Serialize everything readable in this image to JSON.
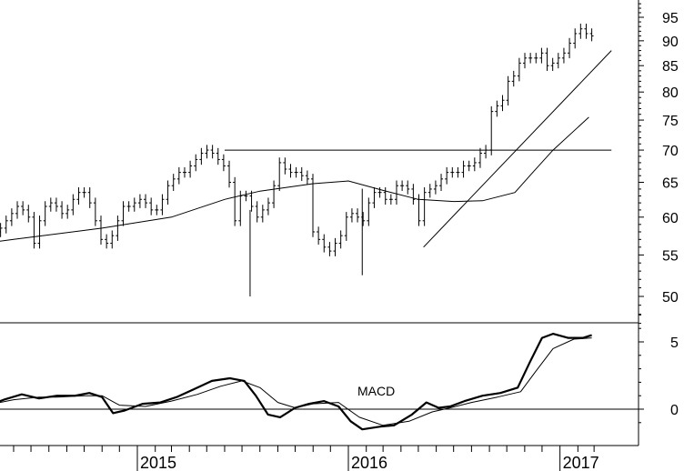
{
  "chart_data": [
    {
      "type": "ohlc",
      "title": "",
      "ylabel": "",
      "y_scale": "log",
      "ylim": [
        46,
        99
      ],
      "y_ticks": [
        50,
        55,
        60,
        65,
        70,
        75,
        80,
        85,
        90,
        95
      ],
      "x_range": [
        "2014-01-01",
        "2017-03-31"
      ],
      "x_labels": [
        "2015",
        "2016",
        "2017"
      ],
      "price_bars": {
        "approx_closes": [
          54.0,
          54.5,
          55.5,
          57.0,
          57.5,
          57.0,
          56.5,
          57.0,
          57.5,
          57.5,
          56.0,
          57.0,
          58.0,
          58.5,
          59.5,
          60.5,
          61.5,
          61.0,
          60.0,
          56.5,
          59.5,
          61.5,
          62.0,
          61.5,
          60.5,
          61.0,
          62.5,
          63.5,
          63.5,
          62.0,
          59.5,
          57.0,
          56.5,
          57.5,
          59.5,
          61.5,
          61.5,
          62.0,
          62.5,
          62.0,
          61.0,
          61.0,
          62.5,
          64.5,
          65.5,
          66.5,
          66.5,
          67.5,
          68.5,
          69.5,
          70.0,
          69.5,
          68.5,
          67.5,
          65.0,
          59.5,
          63.0,
          63.0,
          61.5,
          60.0,
          61.0,
          62.0,
          64.5,
          68.0,
          67.0,
          66.5,
          66.5,
          66.0,
          65.5,
          58.0,
          57.0,
          56.0,
          55.5,
          56.5,
          57.5,
          60.0,
          60.5,
          60.0,
          59.5,
          62.0,
          63.5,
          63.5,
          62.5,
          62.5,
          64.5,
          64.5,
          64.0,
          62.5,
          59.5,
          63.5,
          64.0,
          64.5,
          65.5,
          66.5,
          66.5,
          66.5,
          67.5,
          67.5,
          68.0,
          69.5,
          70.0,
          76.5,
          77.5,
          78.5,
          82.0,
          83.0,
          85.5,
          86.5,
          86.5,
          86.5,
          87.5,
          85.0,
          85.5,
          86.5,
          87.5,
          89.5,
          91.5,
          92.5,
          91.5,
          91.0
        ],
        "spikes_low": [
          {
            "date": "2015-07-15",
            "low": 50.0
          },
          {
            "date": "2016-01-25",
            "low": 52.5
          }
        ]
      },
      "series": [
        {
          "kind": "moving_average",
          "points": [
            [
              "2014-01-01",
              55.5
            ],
            [
              "2014-06-01",
              57.0
            ],
            [
              "2014-11-01",
              58.5
            ],
            [
              "2015-03-01",
              60.0
            ],
            [
              "2015-06-01",
              62.5
            ],
            [
              "2015-08-01",
              63.7
            ],
            [
              "2015-11-01",
              64.8
            ],
            [
              "2016-01-01",
              65.2
            ],
            [
              "2016-03-01",
              63.8
            ],
            [
              "2016-05-01",
              62.5
            ],
            [
              "2016-07-01",
              62.2
            ],
            [
              "2016-08-20",
              62.3
            ],
            [
              "2016-10-15",
              63.5
            ],
            [
              "2016-11-15",
              66.5
            ],
            [
              "2016-12-20",
              70.0
            ],
            [
              "2017-02-20",
              75.5
            ]
          ]
        }
      ],
      "lines": [
        {
          "kind": "horizontal",
          "y": 70.0,
          "from": "2015-06-01",
          "to": "2017-03-31"
        },
        {
          "kind": "trend",
          "from": [
            "2016-05-10",
            56.0
          ],
          "to": [
            "2017-03-31",
            88.0
          ]
        }
      ]
    },
    {
      "type": "line",
      "title": "",
      "annotation": "MACD",
      "ylim": [
        -2,
        7
      ],
      "y_ticks": [
        0,
        5
      ],
      "zero_line": true,
      "series": [
        {
          "kind": "macd_line",
          "points": [
            [
              "2014-01-01",
              0.4
            ],
            [
              "2014-01-20",
              -0.2
            ],
            [
              "2014-02-15",
              -0.1
            ],
            [
              "2014-03-15",
              0.3
            ],
            [
              "2014-04-15",
              0.2
            ],
            [
              "2014-05-15",
              0.7
            ],
            [
              "2014-06-15",
              1.1
            ],
            [
              "2014-07-15",
              0.8
            ],
            [
              "2014-08-15",
              1.0
            ],
            [
              "2014-09-15",
              1.0
            ],
            [
              "2014-10-10",
              1.2
            ],
            [
              "2014-11-01",
              0.9
            ],
            [
              "2014-11-20",
              -0.3
            ],
            [
              "2014-12-10",
              -0.1
            ],
            [
              "2015-01-10",
              0.4
            ],
            [
              "2015-02-10",
              0.5
            ],
            [
              "2015-03-10",
              0.9
            ],
            [
              "2015-04-10",
              1.5
            ],
            [
              "2015-05-10",
              2.1
            ],
            [
              "2015-06-10",
              2.3
            ],
            [
              "2015-07-05",
              2.1
            ],
            [
              "2015-07-25",
              1.0
            ],
            [
              "2015-08-15",
              -0.4
            ],
            [
              "2015-09-05",
              -0.6
            ],
            [
              "2015-10-01",
              0.1
            ],
            [
              "2015-10-25",
              0.4
            ],
            [
              "2015-11-20",
              0.6
            ],
            [
              "2015-12-15",
              0.2
            ],
            [
              "2016-01-05",
              -0.9
            ],
            [
              "2016-01-25",
              -1.5
            ],
            [
              "2016-02-25",
              -1.3
            ],
            [
              "2016-03-20",
              -1.2
            ],
            [
              "2016-04-20",
              -0.4
            ],
            [
              "2016-05-15",
              0.5
            ],
            [
              "2016-06-05",
              0.1
            ],
            [
              "2016-06-25",
              0.2
            ],
            [
              "2016-07-20",
              0.6
            ],
            [
              "2016-08-20",
              1.0
            ],
            [
              "2016-09-20",
              1.2
            ],
            [
              "2016-10-20",
              1.6
            ],
            [
              "2016-11-10",
              3.5
            ],
            [
              "2016-12-01",
              5.3
            ],
            [
              "2016-12-20",
              5.6
            ],
            [
              "2017-01-15",
              5.3
            ],
            [
              "2017-02-10",
              5.3
            ],
            [
              "2017-02-25",
              5.5
            ]
          ]
        },
        {
          "kind": "signal_line",
          "points": [
            [
              "2014-01-01",
              0.9
            ],
            [
              "2014-02-01",
              0.3
            ],
            [
              "2014-03-15",
              0.2
            ],
            [
              "2014-04-15",
              0.3
            ],
            [
              "2014-06-01",
              0.7
            ],
            [
              "2014-07-15",
              0.9
            ],
            [
              "2014-08-15",
              0.9
            ],
            [
              "2014-10-01",
              1.0
            ],
            [
              "2014-11-01",
              1.0
            ],
            [
              "2014-12-01",
              0.3
            ],
            [
              "2015-01-15",
              0.2
            ],
            [
              "2015-03-01",
              0.6
            ],
            [
              "2015-04-15",
              1.1
            ],
            [
              "2015-05-25",
              1.7
            ],
            [
              "2015-07-01",
              2.1
            ],
            [
              "2015-08-01",
              1.6
            ],
            [
              "2015-09-01",
              0.5
            ],
            [
              "2015-10-01",
              0.1
            ],
            [
              "2015-11-01",
              0.4
            ],
            [
              "2015-12-15",
              0.5
            ],
            [
              "2016-01-20",
              -0.6
            ],
            [
              "2016-03-01",
              -1.2
            ],
            [
              "2016-04-15",
              -0.9
            ],
            [
              "2016-05-25",
              -0.2
            ],
            [
              "2016-06-25",
              0.1
            ],
            [
              "2016-08-01",
              0.5
            ],
            [
              "2016-09-15",
              0.9
            ],
            [
              "2016-10-25",
              1.3
            ],
            [
              "2016-11-20",
              2.8
            ],
            [
              "2016-12-20",
              4.5
            ],
            [
              "2017-01-25",
              5.2
            ],
            [
              "2017-02-25",
              5.3
            ]
          ]
        }
      ]
    }
  ]
}
